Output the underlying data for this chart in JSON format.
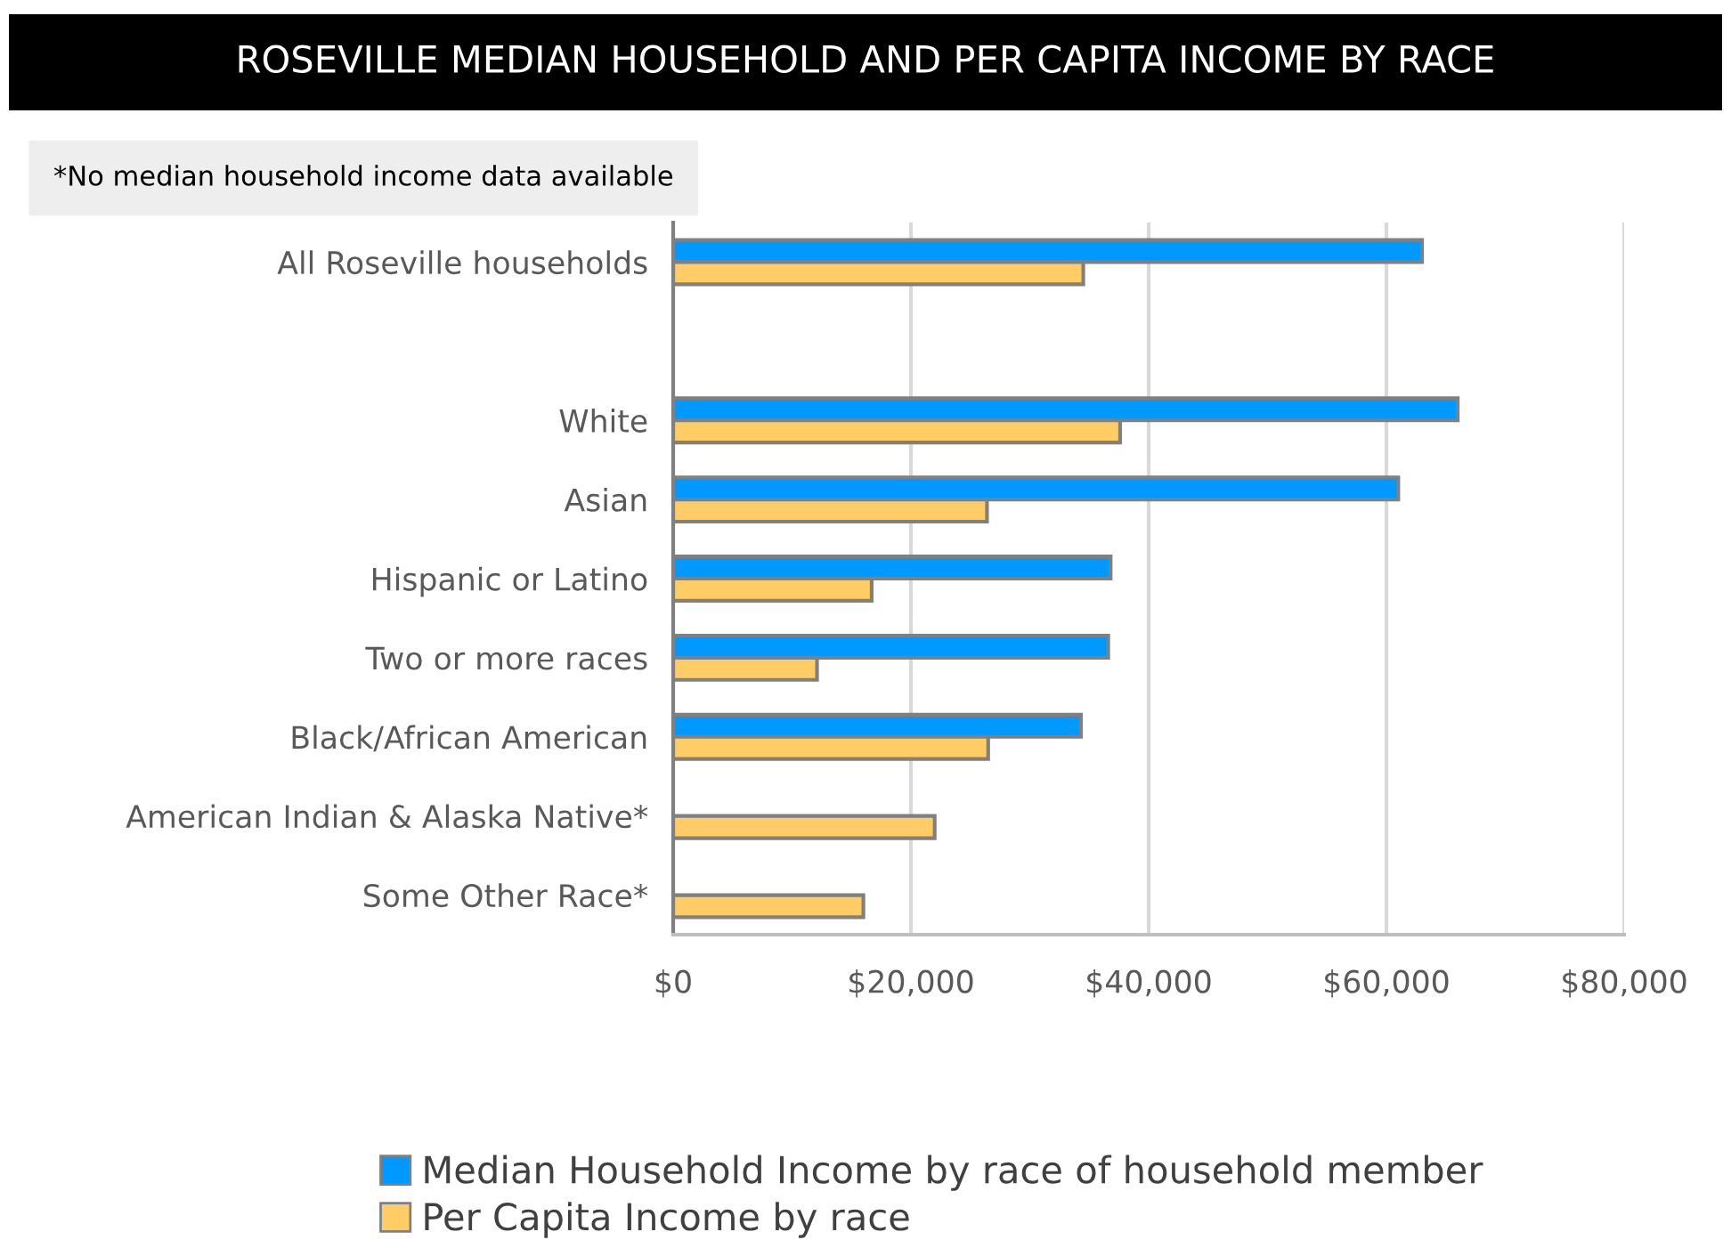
{
  "chart_data": {
    "type": "bar",
    "orientation": "horizontal",
    "title": "ROSEVILLE MEDIAN HOUSEHOLD AND PER CAPITA INCOME BY RACE",
    "annotations": [
      "*No median household income data available"
    ],
    "categories": [
      "All Roseville households",
      null,
      "White",
      "Asian",
      "Hispanic or Latino",
      "Two or more races",
      "Black/African American",
      "American Indian & Alaska Native*",
      "Some Other Race*"
    ],
    "series": [
      {
        "name": "Median Household Income by race of household member",
        "color": "#0099ff",
        "values": [
          63000,
          null,
          66000,
          61000,
          36800,
          36600,
          34300,
          null,
          null
        ]
      },
      {
        "name": "Per Capita Income by race",
        "color": "#ffcc66",
        "values": [
          34500,
          null,
          37600,
          26400,
          16700,
          12100,
          26500,
          22000,
          16000
        ]
      }
    ],
    "xlim": [
      0,
      80000
    ],
    "xticks": [
      {
        "value": 0,
        "label": "$0"
      },
      {
        "value": 20000,
        "label": "$20,000"
      },
      {
        "value": 40000,
        "label": "$40,000"
      },
      {
        "value": 60000,
        "label": "$60,000"
      },
      {
        "value": 80000,
        "label": "$80,000"
      }
    ],
    "grid": "x",
    "legend": "bottom"
  }
}
